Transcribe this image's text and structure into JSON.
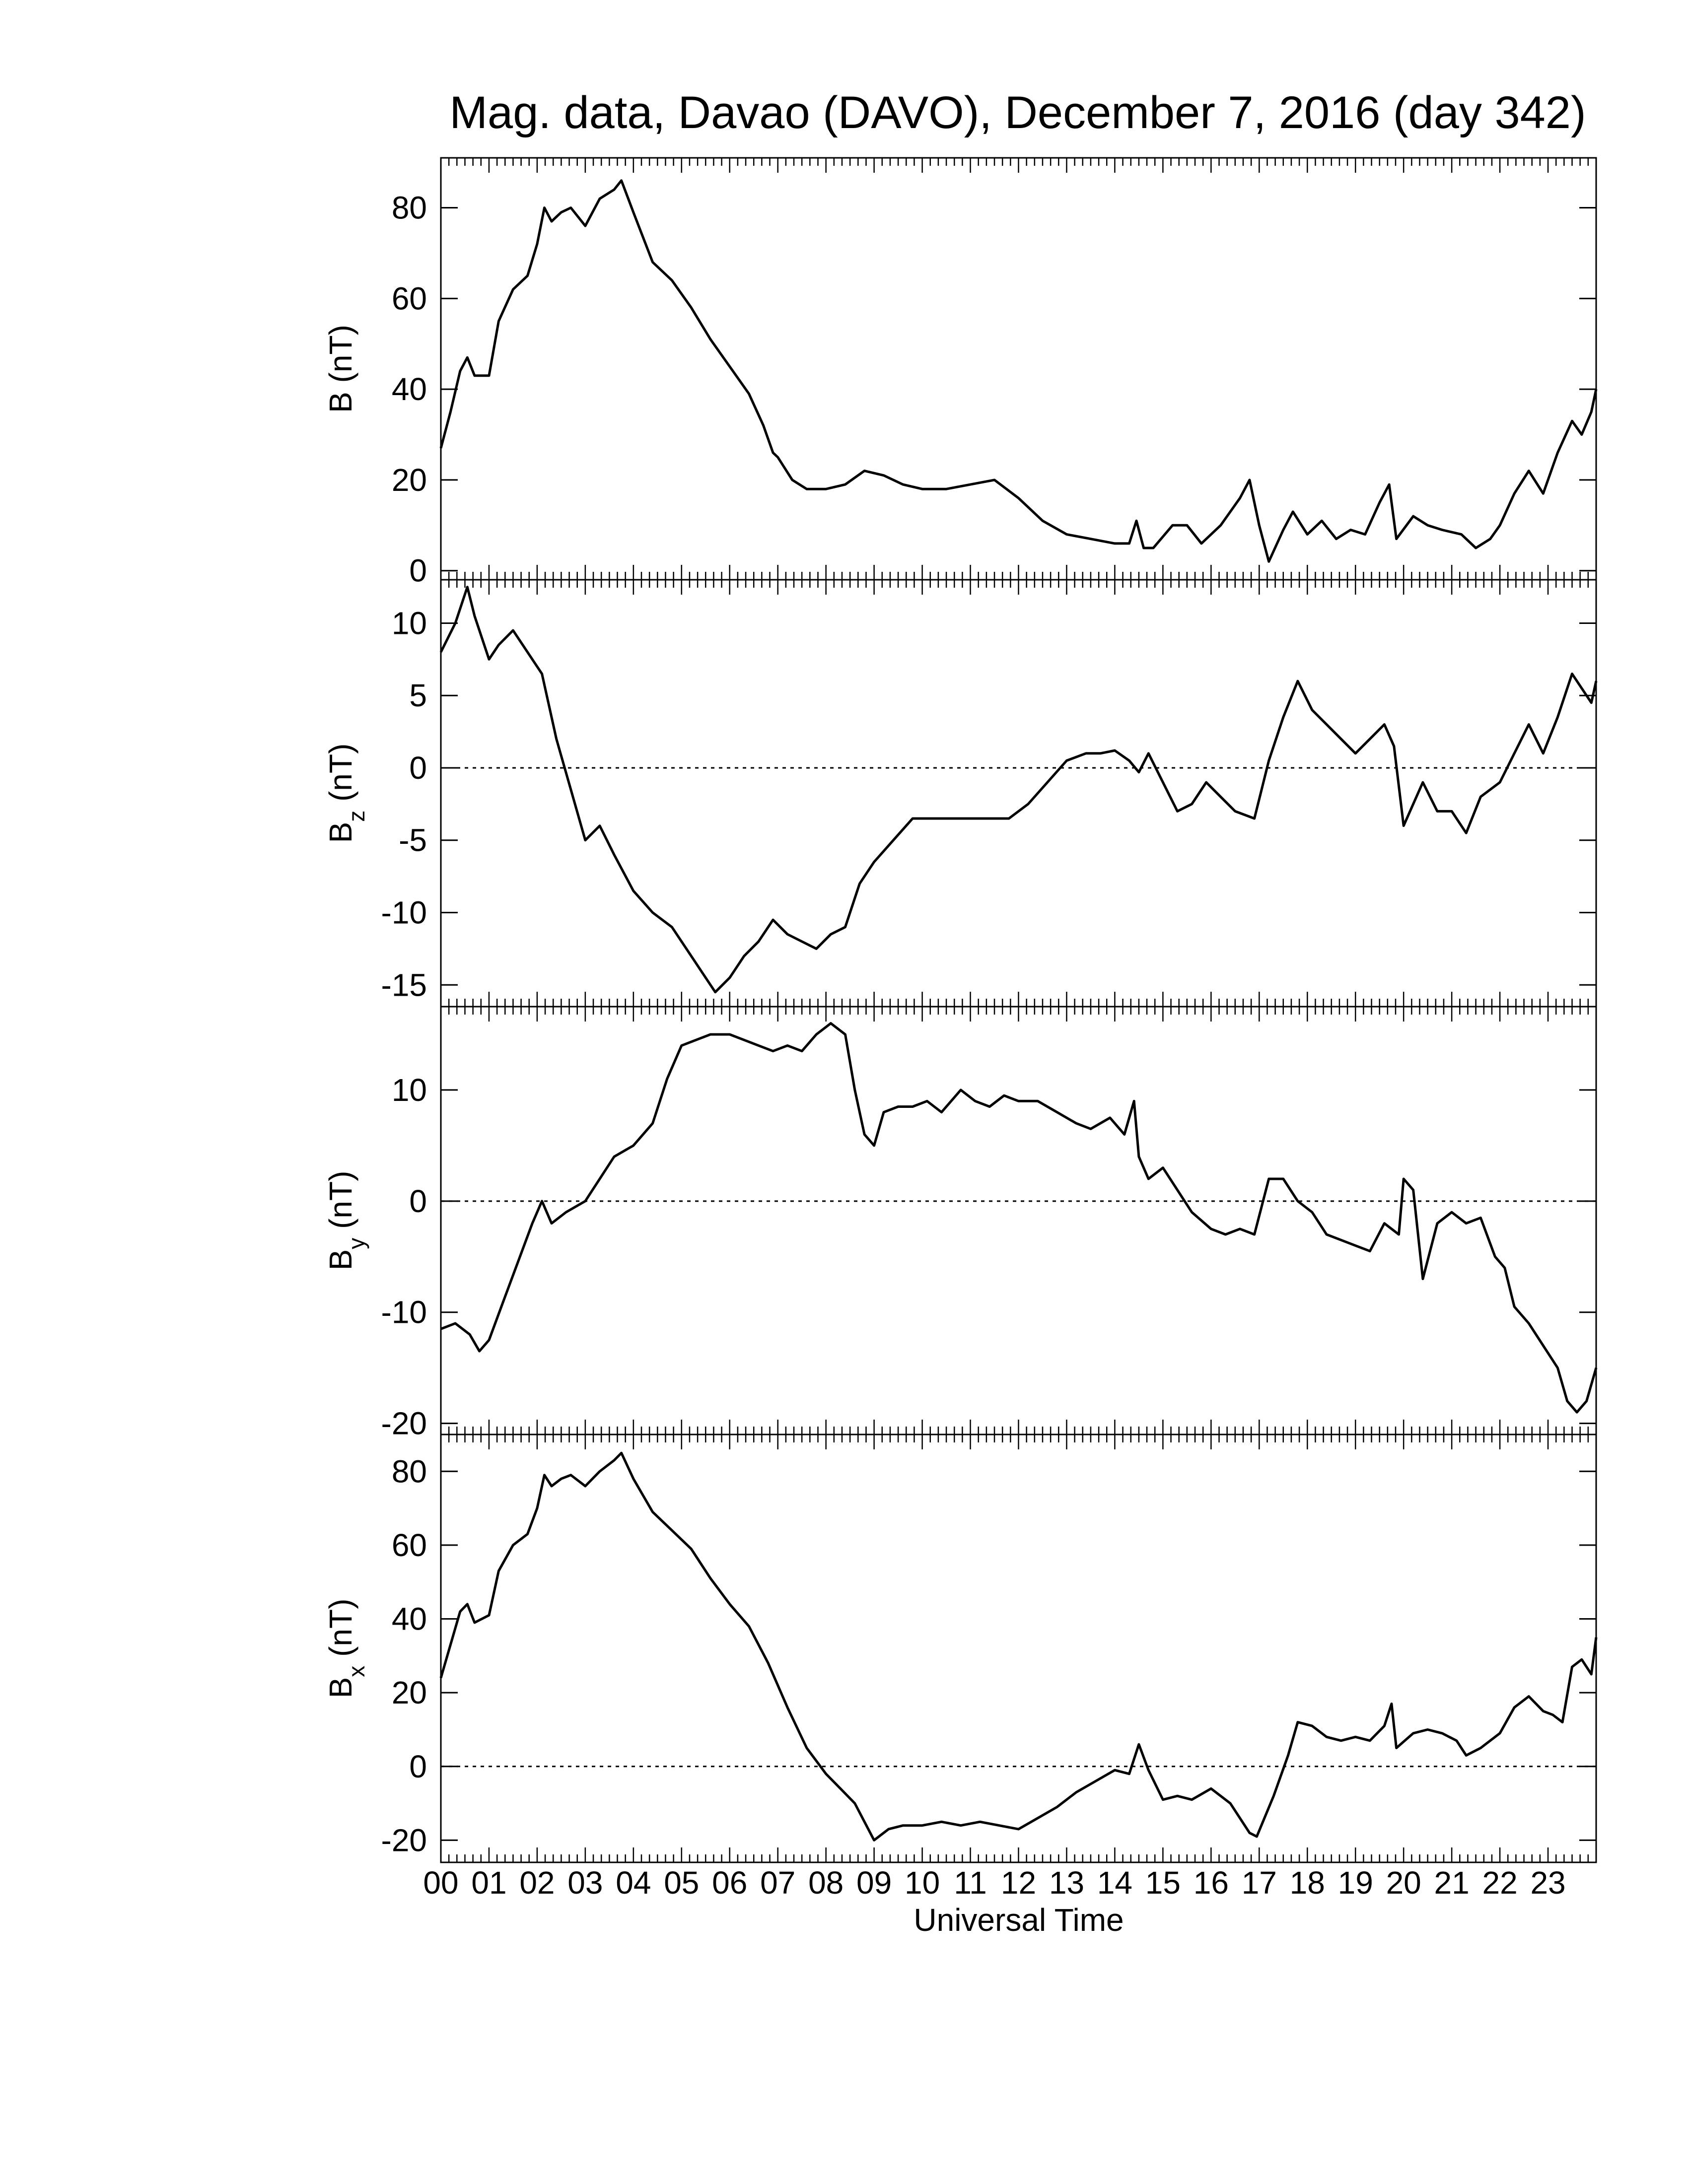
{
  "chart_data": {
    "type": "line",
    "title": "Mag. data, Davao (DAVO), December 7, 2016 (day 342)",
    "xlabel": "Universal Time",
    "xlim": [
      0,
      24
    ],
    "x_tick_labels": [
      "00",
      "01",
      "02",
      "03",
      "04",
      "05",
      "06",
      "07",
      "08",
      "09",
      "10",
      "11",
      "12",
      "13",
      "14",
      "15",
      "16",
      "17",
      "18",
      "19",
      "20",
      "21",
      "22",
      "23"
    ],
    "panels": [
      {
        "id": "B",
        "ylabel": {
          "main": "B",
          "sub": "",
          "unit": " (nT)"
        },
        "ylim": [
          -2,
          91
        ],
        "yticks": [
          0,
          20,
          40,
          60,
          80
        ],
        "zero_line": false,
        "series": {
          "x": [
            0,
            0.2,
            0.4,
            0.55,
            0.7,
            1.0,
            1.2,
            1.5,
            1.8,
            2.0,
            2.15,
            2.3,
            2.5,
            2.7,
            3.0,
            3.3,
            3.6,
            3.75,
            4.0,
            4.4,
            4.8,
            5.2,
            5.6,
            6.0,
            6.4,
            6.7,
            6.9,
            7.0,
            7.3,
            7.6,
            8.0,
            8.4,
            8.8,
            9.2,
            9.6,
            10.0,
            10.5,
            11.0,
            11.5,
            12.0,
            12.5,
            13.0,
            13.5,
            14.0,
            14.3,
            14.45,
            14.6,
            14.8,
            15.2,
            15.5,
            15.8,
            16.2,
            16.6,
            16.8,
            17.0,
            17.2,
            17.5,
            17.7,
            18.0,
            18.3,
            18.6,
            18.9,
            19.2,
            19.5,
            19.7,
            19.85,
            20.2,
            20.5,
            20.8,
            21.2,
            21.5,
            21.8,
            22.0,
            22.3,
            22.6,
            22.9,
            23.2,
            23.5,
            23.7,
            23.9,
            24.0
          ],
          "y": [
            27,
            35,
            44,
            47,
            43,
            43,
            55,
            62,
            65,
            72,
            80,
            77,
            79,
            80,
            76,
            82,
            84,
            86,
            79,
            68,
            64,
            58,
            51,
            45,
            39,
            32,
            26,
            25,
            20,
            18,
            18,
            19,
            22,
            21,
            19,
            18,
            18,
            19,
            20,
            16,
            11,
            8,
            7,
            6,
            6,
            11,
            5,
            5,
            10,
            10,
            6,
            10,
            16,
            20,
            10,
            2,
            9,
            13,
            8,
            11,
            7,
            9,
            8,
            15,
            19,
            7,
            12,
            10,
            9,
            8,
            5,
            7,
            10,
            17,
            22,
            17,
            26,
            33,
            30,
            35,
            40
          ]
        }
      },
      {
        "id": "Bz",
        "ylabel": {
          "main": "B",
          "sub": "z",
          "unit": " (nT)"
        },
        "ylim": [
          -16.5,
          13
        ],
        "yticks": [
          -15,
          -10,
          -5,
          0,
          5,
          10
        ],
        "zero_line": true,
        "series": {
          "x": [
            0,
            0.3,
            0.55,
            0.7,
            1.0,
            1.2,
            1.5,
            1.8,
            2.1,
            2.4,
            2.7,
            3.0,
            3.3,
            3.6,
            4.0,
            4.4,
            4.8,
            5.1,
            5.4,
            5.7,
            6.0,
            6.3,
            6.6,
            6.9,
            7.2,
            7.5,
            7.8,
            8.1,
            8.4,
            8.7,
            9.0,
            9.4,
            9.8,
            10.2,
            10.6,
            11.0,
            11.4,
            11.8,
            12.2,
            12.6,
            13.0,
            13.4,
            13.7,
            14.0,
            14.3,
            14.5,
            14.7,
            15.0,
            15.3,
            15.6,
            15.9,
            16.2,
            16.5,
            16.9,
            17.2,
            17.5,
            17.8,
            18.1,
            18.4,
            18.7,
            19.0,
            19.3,
            19.6,
            19.8,
            20.0,
            20.4,
            20.7,
            21.0,
            21.3,
            21.6,
            22.0,
            22.3,
            22.6,
            22.9,
            23.2,
            23.5,
            23.7,
            23.9,
            24.0
          ],
          "y": [
            8,
            10,
            12.5,
            10.5,
            7.5,
            8.5,
            9.5,
            8,
            6.5,
            2,
            -1.5,
            -5,
            -4,
            -6,
            -8.5,
            -10,
            -11,
            -12.5,
            -14,
            -15.5,
            -14.5,
            -13,
            -12,
            -10.5,
            -11.5,
            -12,
            -12.5,
            -11.5,
            -11,
            -8,
            -6.5,
            -5,
            -3.5,
            -3.5,
            -3.5,
            -3.5,
            -3.5,
            -3.5,
            -2.5,
            -1,
            0.5,
            1,
            1,
            1.2,
            0.5,
            -0.3,
            1,
            -1,
            -3,
            -2.5,
            -1,
            -2,
            -3,
            -3.5,
            0.5,
            3.5,
            6,
            4,
            3,
            2,
            1,
            2,
            3,
            1.5,
            -4,
            -1,
            -3,
            -3,
            -4.5,
            -2,
            -1,
            1,
            3,
            1,
            3.5,
            6.5,
            5.5,
            4.5,
            6
          ]
        }
      },
      {
        "id": "By",
        "ylabel": {
          "main": "B",
          "sub": "y",
          "unit": " (nT)"
        },
        "ylim": [
          -21,
          17.5
        ],
        "yticks": [
          -20,
          -10,
          0,
          10
        ],
        "zero_line": true,
        "series": {
          "x": [
            0,
            0.3,
            0.6,
            0.8,
            1.0,
            1.3,
            1.6,
            1.9,
            2.1,
            2.3,
            2.6,
            3.0,
            3.3,
            3.6,
            4.0,
            4.4,
            4.7,
            5.0,
            5.3,
            5.6,
            6.0,
            6.3,
            6.6,
            6.9,
            7.2,
            7.5,
            7.8,
            8.1,
            8.4,
            8.6,
            8.8,
            9.0,
            9.2,
            9.5,
            9.8,
            10.1,
            10.4,
            10.8,
            11.1,
            11.4,
            11.7,
            12.0,
            12.4,
            12.8,
            13.2,
            13.5,
            13.9,
            14.2,
            14.4,
            14.5,
            14.7,
            15.0,
            15.3,
            15.6,
            16.0,
            16.3,
            16.6,
            16.9,
            17.2,
            17.5,
            17.8,
            18.1,
            18.4,
            18.7,
            19.0,
            19.3,
            19.6,
            19.9,
            20.0,
            20.2,
            20.4,
            20.7,
            21.0,
            21.3,
            21.6,
            21.9,
            22.1,
            22.3,
            22.6,
            22.9,
            23.2,
            23.4,
            23.6,
            23.8,
            24.0
          ],
          "y": [
            -11.5,
            -11,
            -12,
            -13.5,
            -12.5,
            -9,
            -5.5,
            -2,
            0,
            -2,
            -1,
            0,
            2,
            4,
            5,
            7,
            11,
            14,
            14.5,
            15,
            15,
            14.5,
            14,
            13.5,
            14,
            13.5,
            15,
            16,
            15,
            10,
            6,
            5,
            8,
            8.5,
            8.5,
            9,
            8,
            10,
            9,
            8.5,
            9.5,
            9,
            9,
            8,
            7,
            6.5,
            7.5,
            6,
            9,
            4,
            2,
            3,
            1,
            -1,
            -2.5,
            -3,
            -2.5,
            -3,
            2,
            2,
            0,
            -1,
            -3,
            -3.5,
            -4,
            -4.5,
            -2,
            -3,
            2,
            1,
            -7,
            -2,
            -1,
            -2,
            -1.5,
            -5,
            -6,
            -9.5,
            -11,
            -13,
            -15,
            -18,
            -19,
            -18,
            -15
          ]
        }
      },
      {
        "id": "Bx",
        "ylabel": {
          "main": "B",
          "sub": "x",
          "unit": " (nT)"
        },
        "ylim": [
          -26,
          90
        ],
        "yticks": [
          -20,
          0,
          20,
          40,
          60,
          80
        ],
        "zero_line": true,
        "series": {
          "x": [
            0,
            0.2,
            0.4,
            0.55,
            0.7,
            1.0,
            1.2,
            1.5,
            1.8,
            2.0,
            2.15,
            2.3,
            2.5,
            2.7,
            3.0,
            3.3,
            3.6,
            3.75,
            4.0,
            4.4,
            4.8,
            5.2,
            5.6,
            6.0,
            6.4,
            6.8,
            7.2,
            7.6,
            8.0,
            8.3,
            8.6,
            9.0,
            9.3,
            9.6,
            10.0,
            10.4,
            10.8,
            11.2,
            11.6,
            12.0,
            12.4,
            12.8,
            13.2,
            13.6,
            14.0,
            14.3,
            14.5,
            14.7,
            15.0,
            15.3,
            15.6,
            16.0,
            16.4,
            16.8,
            16.95,
            17.3,
            17.6,
            17.8,
            18.1,
            18.4,
            18.7,
            19.0,
            19.3,
            19.6,
            19.75,
            19.85,
            20.2,
            20.5,
            20.8,
            21.1,
            21.3,
            21.6,
            22.0,
            22.3,
            22.6,
            22.9,
            23.1,
            23.3,
            23.5,
            23.7,
            23.9,
            24.0
          ],
          "y": [
            24,
            33,
            42,
            44,
            39,
            41,
            53,
            60,
            63,
            70,
            79,
            76,
            78,
            79,
            76,
            80,
            83,
            85,
            78,
            69,
            64,
            59,
            51,
            44,
            38,
            28,
            16,
            5,
            -2,
            -6,
            -10,
            -20,
            -17,
            -16,
            -16,
            -15,
            -16,
            -15,
            -16,
            -17,
            -14,
            -11,
            -7,
            -4,
            -1,
            -2,
            6,
            -1,
            -9,
            -8,
            -9,
            -6,
            -10,
            -18,
            -19,
            -8,
            3,
            12,
            11,
            8,
            7,
            8,
            7,
            11,
            17,
            5,
            9,
            10,
            9,
            7,
            3,
            5,
            9,
            16,
            19,
            15,
            14,
            12,
            27,
            29,
            25,
            35
          ]
        }
      }
    ]
  }
}
